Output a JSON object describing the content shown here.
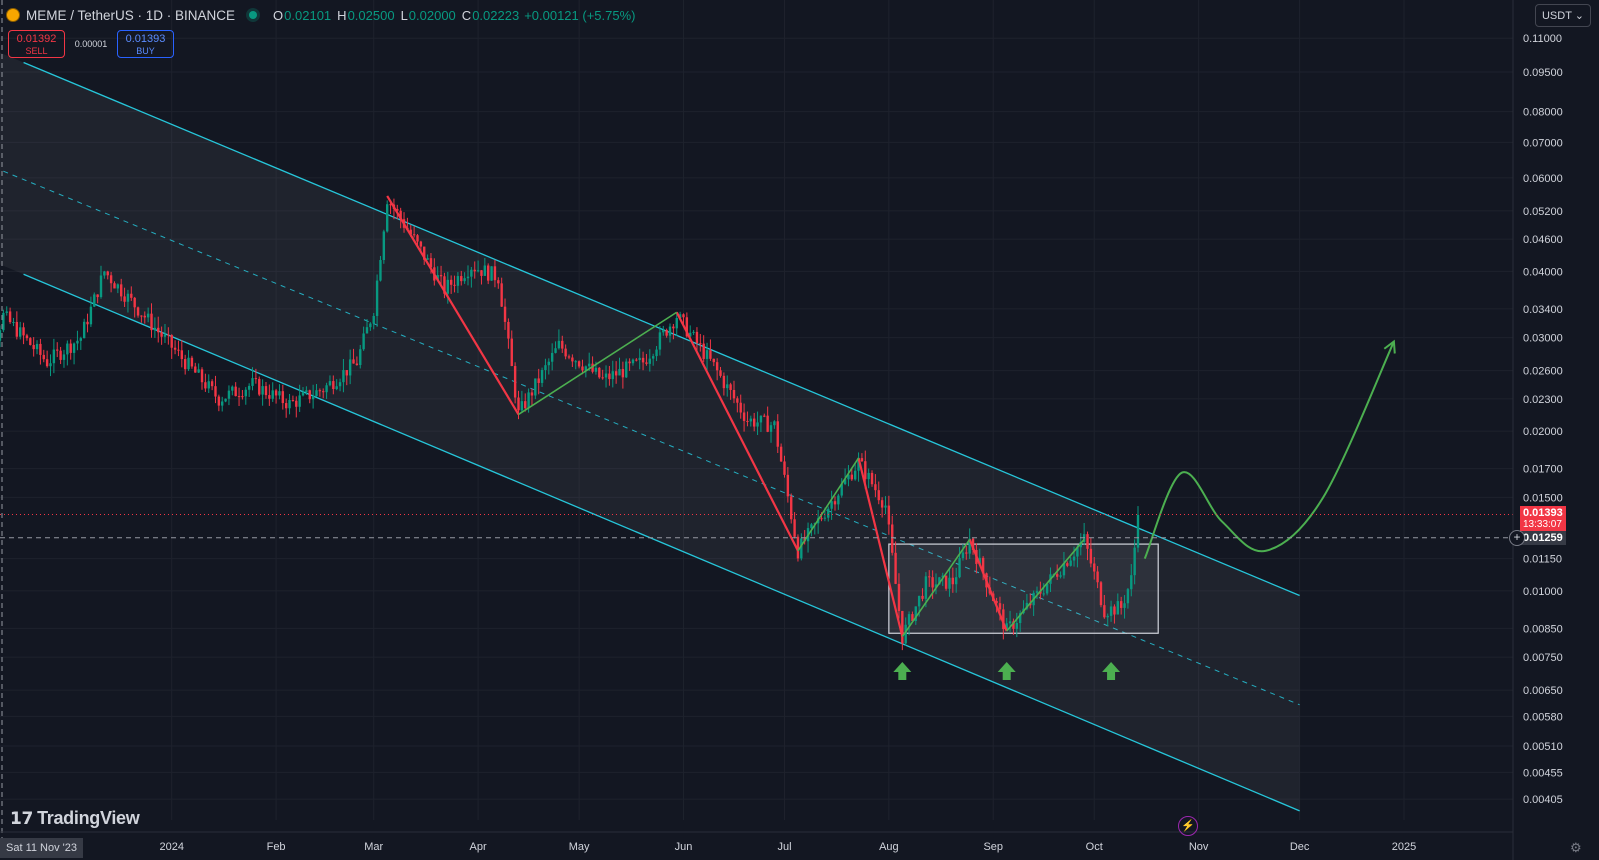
{
  "header": {
    "symbol": "MEME / TetherUS · 1D · BINANCE",
    "open_label": "O",
    "open": "0.02101",
    "high_label": "H",
    "high": "0.02500",
    "low_label": "L",
    "low": "0.02000",
    "close_label": "C",
    "close": "0.02223",
    "change": "+0.00121 (+5.75%)"
  },
  "trade": {
    "sell_price": "0.01392",
    "sell_label": "SELL",
    "spread": "0.00001",
    "buy_price": "0.01393",
    "buy_label": "BUY"
  },
  "currency_button": "USDT",
  "brand": "TradingView",
  "crosshair_date": "Sat 11 Nov '23",
  "last_price": "0.01393",
  "countdown": "13:33:07",
  "crosshair_price": "0.01259",
  "colors": {
    "up": "#089981",
    "down": "#f23645",
    "channel": "#26c6da",
    "impulse_down": "#f23645",
    "impulse_up": "#4caf50",
    "projection": "#4caf50"
  },
  "icons": [
    "plus-circle-icon",
    "lightning-icon",
    "settings-icon",
    "tradingview-logo-icon"
  ],
  "chart_data": {
    "type": "candlestick",
    "y_scale": "log",
    "y_range": [
      0.0037,
      0.114
    ],
    "x_range": [
      "2023-11-11",
      "2025-01-31"
    ],
    "price_ticks": [
      "0.11000",
      "0.09500",
      "0.08000",
      "0.07000",
      "0.06000",
      "0.05200",
      "0.04600",
      "0.04000",
      "0.03400",
      "0.03000",
      "0.02600",
      "0.02300",
      "0.02000",
      "0.01700",
      "0.01500",
      "0.01150",
      "0.01000",
      "0.00850",
      "0.00750",
      "0.00650",
      "0.00580",
      "0.00510",
      "0.00455",
      "0.00405"
    ],
    "time_ticks": [
      {
        "label": "2024",
        "date": "2024-01-01"
      },
      {
        "label": "Feb",
        "date": "2024-02-01"
      },
      {
        "label": "Mar",
        "date": "2024-03-01"
      },
      {
        "label": "Apr",
        "date": "2024-04-01"
      },
      {
        "label": "May",
        "date": "2024-05-01"
      },
      {
        "label": "Jun",
        "date": "2024-06-01"
      },
      {
        "label": "Jul",
        "date": "2024-07-01"
      },
      {
        "label": "Aug",
        "date": "2024-08-01"
      },
      {
        "label": "Sep",
        "date": "2024-09-01"
      },
      {
        "label": "Oct",
        "date": "2024-10-01"
      },
      {
        "label": "Nov",
        "date": "2024-11-01"
      },
      {
        "label": "Dec",
        "date": "2024-12-01"
      },
      {
        "label": "2025",
        "date": "2025-01-01"
      }
    ],
    "anchors": [
      {
        "date": "2023-11-01",
        "price": 0.021
      },
      {
        "date": "2023-11-12",
        "price": 0.033
      },
      {
        "date": "2023-11-25",
        "price": 0.027
      },
      {
        "date": "2023-12-05",
        "price": 0.03
      },
      {
        "date": "2023-12-12",
        "price": 0.04
      },
      {
        "date": "2023-12-22",
        "price": 0.034
      },
      {
        "date": "2024-01-05",
        "price": 0.027
      },
      {
        "date": "2024-01-15",
        "price": 0.023
      },
      {
        "date": "2024-01-25",
        "price": 0.0245
      },
      {
        "date": "2024-02-05",
        "price": 0.0225
      },
      {
        "date": "2024-02-15",
        "price": 0.024
      },
      {
        "date": "2024-02-25",
        "price": 0.027
      },
      {
        "date": "2024-03-01",
        "price": 0.034
      },
      {
        "date": "2024-03-05",
        "price": 0.055
      },
      {
        "date": "2024-03-12",
        "price": 0.047
      },
      {
        "date": "2024-03-22",
        "price": 0.037
      },
      {
        "date": "2024-03-30",
        "price": 0.041
      },
      {
        "date": "2024-04-07",
        "price": 0.039
      },
      {
        "date": "2024-04-13",
        "price": 0.0215
      },
      {
        "date": "2024-04-25",
        "price": 0.029
      },
      {
        "date": "2024-05-08",
        "price": 0.025
      },
      {
        "date": "2024-05-20",
        "price": 0.027
      },
      {
        "date": "2024-05-30",
        "price": 0.033
      },
      {
        "date": "2024-06-10",
        "price": 0.0265
      },
      {
        "date": "2024-06-20",
        "price": 0.021
      },
      {
        "date": "2024-06-28",
        "price": 0.0205
      },
      {
        "date": "2024-07-05",
        "price": 0.0119
      },
      {
        "date": "2024-07-23",
        "price": 0.0175
      },
      {
        "date": "2024-07-31",
        "price": 0.0145
      },
      {
        "date": "2024-08-05",
        "price": 0.0082
      },
      {
        "date": "2024-08-12",
        "price": 0.0103
      },
      {
        "date": "2024-08-20",
        "price": 0.0104
      },
      {
        "date": "2024-08-25",
        "price": 0.0125
      },
      {
        "date": "2024-09-05",
        "price": 0.0084
      },
      {
        "date": "2024-09-18",
        "price": 0.0105
      },
      {
        "date": "2024-09-28",
        "price": 0.0125
      },
      {
        "date": "2024-10-04",
        "price": 0.0092
      },
      {
        "date": "2024-10-09",
        "price": 0.0093
      },
      {
        "date": "2024-10-12",
        "price": 0.0105
      },
      {
        "date": "2024-10-14",
        "price": 0.0139
      }
    ],
    "channel": {
      "upper": [
        [
          "2023-11-18",
          0.099
        ],
        [
          "2024-12-01",
          0.0098
        ]
      ],
      "mid": [
        [
          "2023-11-01",
          0.066
        ],
        [
          "2024-12-01",
          0.0061
        ]
      ],
      "lower": [
        [
          "2023-11-18",
          0.0395
        ],
        [
          "2024-12-01",
          0.00385
        ]
      ],
      "shade_start": "2023-11-01"
    },
    "range_box": {
      "from": "2024-08-01",
      "to": "2024-10-20",
      "top": 0.01225,
      "bottom": 0.00832
    },
    "zigzag_down": [
      [
        [
          "2024-03-05",
          0.0555
        ],
        [
          "2024-04-13",
          0.0215
        ]
      ],
      [
        [
          "2024-05-30",
          0.0335
        ],
        [
          "2024-07-05",
          0.0119
        ]
      ],
      [
        [
          "2024-07-23",
          0.0178
        ],
        [
          "2024-08-05",
          0.0082
        ]
      ],
      [
        [
          "2024-08-25",
          0.0125
        ],
        [
          "2024-09-05",
          0.0084
        ]
      ]
    ],
    "zigzag_up": [
      [
        [
          "2024-04-13",
          0.0215
        ],
        [
          "2024-05-30",
          0.0335
        ]
      ],
      [
        [
          "2024-07-05",
          0.0119
        ],
        [
          "2024-07-23",
          0.0178
        ]
      ],
      [
        [
          "2024-08-05",
          0.0082
        ],
        [
          "2024-08-25",
          0.0125
        ]
      ],
      [
        [
          "2024-09-05",
          0.0084
        ],
        [
          "2024-09-28",
          0.0125
        ]
      ]
    ],
    "markers_up": [
      "2024-08-05",
      "2024-09-05",
      "2024-10-06"
    ],
    "projection": [
      [
        "2024-10-16",
        0.0115
      ],
      [
        "2024-10-27",
        0.0167
      ],
      [
        "2024-11-08",
        0.0135
      ],
      [
        "2024-11-21",
        0.0119
      ],
      [
        "2024-12-08",
        0.015
      ],
      [
        "2024-12-29",
        0.0295
      ]
    ]
  }
}
